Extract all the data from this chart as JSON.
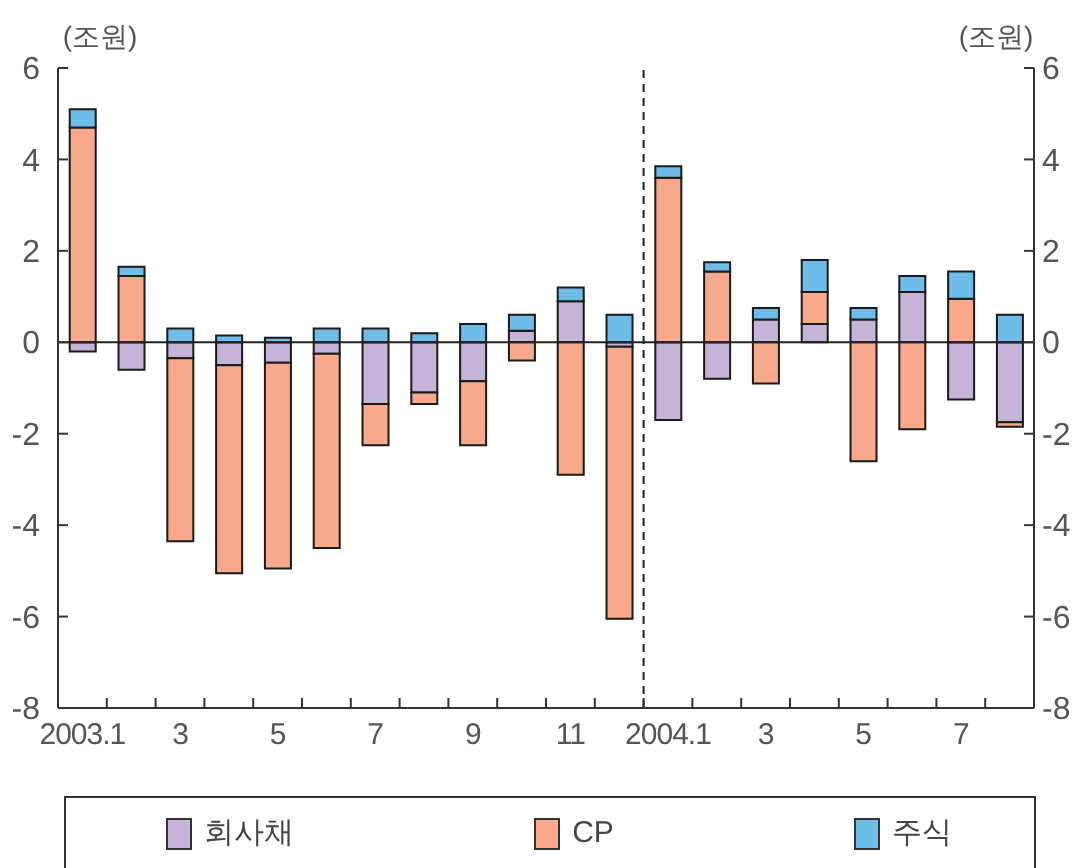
{
  "chart_data": {
    "type": "bar",
    "stacked": true,
    "ylabel": "(조원)",
    "y2label": "(조원)",
    "categories": [
      "2003.1",
      null,
      "3",
      null,
      "5",
      null,
      "7",
      null,
      "9",
      null,
      "11",
      null,
      "2004.1",
      null,
      "3",
      null,
      "5",
      null,
      "7",
      null
    ],
    "series": [
      {
        "name": "회사채",
        "color": "#c6b3d8",
        "values": [
          -0.2,
          -0.6,
          -0.35,
          -0.5,
          -0.45,
          -0.25,
          -1.35,
          -1.1,
          -0.85,
          0.25,
          0.9,
          -0.1,
          -1.7,
          -0.8,
          0.5,
          0.4,
          0.5,
          1.1,
          -1.25,
          -1.75
        ]
      },
      {
        "name": "CP",
        "color": "#f8a98c",
        "values": [
          4.7,
          1.45,
          -4.0,
          -4.55,
          -4.5,
          -4.25,
          -0.9,
          -0.25,
          -1.4,
          -0.4,
          -2.9,
          -5.95,
          3.6,
          1.55,
          -0.9,
          0.7,
          -2.6,
          -1.9,
          0.95,
          -0.1
        ]
      },
      {
        "name": "주식",
        "color": "#6dbde8",
        "values": [
          0.4,
          0.2,
          0.3,
          0.15,
          0.1,
          0.3,
          0.3,
          0.2,
          0.4,
          0.35,
          0.3,
          0.6,
          0.25,
          0.2,
          0.25,
          0.7,
          0.25,
          0.35,
          0.6,
          0.6
        ]
      }
    ],
    "ylim": [
      -8,
      6
    ],
    "yticks": [
      -8,
      -6,
      -4,
      -2,
      0,
      2,
      4,
      6
    ],
    "y2lim": [
      -8,
      6
    ],
    "y2ticks": [
      -8,
      -6,
      -4,
      -2,
      0,
      2,
      4,
      6
    ],
    "ref_lines": [
      {
        "axis": "y",
        "value": 0,
        "color": "#222222"
      },
      {
        "axis": "x",
        "value": "2004.1",
        "line_style": "dashed",
        "color": "#222222"
      }
    ],
    "legend": "bottom"
  }
}
